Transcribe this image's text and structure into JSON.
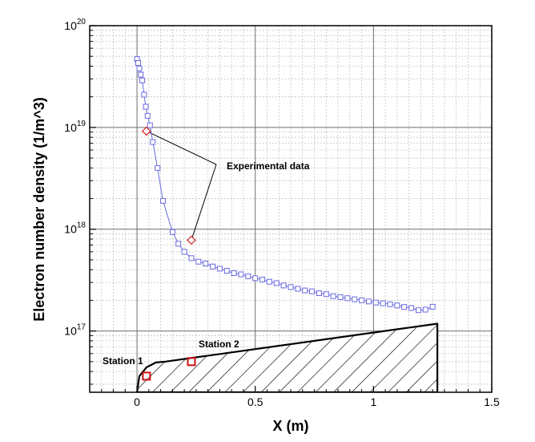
{
  "chart_data": {
    "type": "scatter",
    "title": "",
    "xlabel": "X (m)",
    "ylabel": "Electron number density (1/m^3)",
    "xlim": [
      -0.2,
      1.5
    ],
    "ylim": [
      2.5e+16,
      1e+20
    ],
    "y_scale": "log",
    "x_ticks": [
      {
        "value": 0,
        "label": "0"
      },
      {
        "value": 0.5,
        "label": "0.5"
      },
      {
        "value": 1,
        "label": "1"
      },
      {
        "value": 1.5,
        "label": "1.5"
      }
    ],
    "y_ticks": [
      {
        "value": 1e+17,
        "base": "10",
        "exp": "17"
      },
      {
        "value": 1e+18,
        "base": "10",
        "exp": "18"
      },
      {
        "value": 1e+19,
        "base": "10",
        "exp": "19"
      },
      {
        "value": 1e+20,
        "base": "10",
        "exp": "20"
      }
    ],
    "grid": true,
    "series": [
      {
        "marker": "square",
        "color": "#6a6ae0",
        "points": [
          [
            0.0,
            4.7e+19
          ],
          [
            0.005,
            4.3e+19
          ],
          [
            0.01,
            3.8e+19
          ],
          [
            0.016,
            3.3e+19
          ],
          [
            0.022,
            2.9e+19
          ],
          [
            0.03,
            2.1e+19
          ],
          [
            0.037,
            1.6e+19
          ],
          [
            0.045,
            1.3e+19
          ],
          [
            0.055,
            1.05e+19
          ],
          [
            0.067,
            7.2e+18
          ],
          [
            0.087,
            4e+18
          ],
          [
            0.11,
            1.9e+18
          ],
          [
            0.15,
            9.4e+17
          ],
          [
            0.175,
            7.2e+17
          ],
          [
            0.2,
            6e+17
          ],
          [
            0.23,
            5.2e+17
          ],
          [
            0.26,
            4.8e+17
          ],
          [
            0.29,
            4.6e+17
          ],
          [
            0.32,
            4.3e+17
          ],
          [
            0.35,
            4.1e+17
          ],
          [
            0.38,
            3.9e+17
          ],
          [
            0.41,
            3.7e+17
          ],
          [
            0.44,
            3.6e+17
          ],
          [
            0.47,
            3.45e+17
          ],
          [
            0.5,
            3.3e+17
          ],
          [
            0.53,
            3.2e+17
          ],
          [
            0.56,
            3.05e+17
          ],
          [
            0.59,
            2.95e+17
          ],
          [
            0.62,
            2.8e+17
          ],
          [
            0.65,
            2.7e+17
          ],
          [
            0.68,
            2.6e+17
          ],
          [
            0.71,
            2.5e+17
          ],
          [
            0.74,
            2.45e+17
          ],
          [
            0.77,
            2.35e+17
          ],
          [
            0.8,
            2.3e+17
          ],
          [
            0.83,
            2.2e+17
          ],
          [
            0.86,
            2.15e+17
          ],
          [
            0.89,
            2.1e+17
          ],
          [
            0.92,
            2.05e+17
          ],
          [
            0.95,
            2e+17
          ],
          [
            0.98,
            1.95e+17
          ],
          [
            1.01,
            1.9e+17
          ],
          [
            1.04,
            1.87e+17
          ],
          [
            1.07,
            1.83e+17
          ],
          [
            1.1,
            1.78e+17
          ],
          [
            1.13,
            1.72e+17
          ],
          [
            1.16,
            1.68e+17
          ],
          [
            1.19,
            1.6e+17
          ],
          [
            1.22,
            1.62e+17
          ],
          [
            1.25,
            1.73e+17
          ]
        ]
      },
      {
        "marker": "diamond",
        "color": "#d42020",
        "points": [
          [
            0.04,
            9.2e+18
          ],
          [
            0.23,
            7.8e+17
          ]
        ]
      }
    ],
    "annotations": [
      {
        "text": "Experimental data"
      },
      {
        "text": "Station 1"
      },
      {
        "text": "Station 2"
      }
    ],
    "stations": [
      {
        "label": "Station 1",
        "x": 0.04,
        "y": 3.6e+16
      },
      {
        "label": "Station 2",
        "x": 0.23,
        "y": 5e+16
      }
    ],
    "body_outline": [
      [
        0.0,
        2.5e+16
      ],
      [
        0.01,
        3.6e+16
      ],
      [
        0.04,
        4.4e+16
      ],
      [
        0.08,
        4.9e+16
      ],
      [
        0.12,
        5e+16
      ],
      [
        1.27,
        1.18e+17
      ],
      [
        1.27,
        2.5e+16
      ]
    ]
  }
}
